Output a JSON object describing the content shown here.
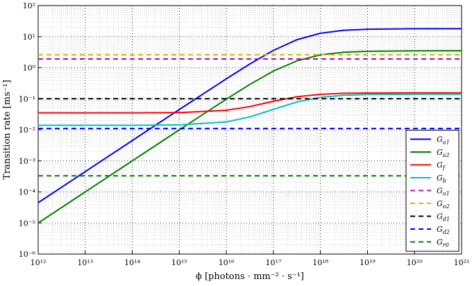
{
  "chart_data": {
    "type": "line",
    "xlabel": "ϕ [photons · mm⁻² · s⁻¹]",
    "ylabel": "Transition rate [ms⁻¹]",
    "xscale": "log",
    "yscale": "log",
    "grid": true,
    "legend": "lower right",
    "x": [
      1000000000000.0,
      10000000000000.0,
      100000000000000.0,
      1000000000000000.0,
      1e+16,
      3.16e+16,
      1e+17,
      3.16e+17,
      1e+18,
      3.16e+18,
      1e+19,
      1e+20,
      1e+21
    ],
    "xlim": [
      1000000000000.0,
      1e+21
    ],
    "xticks": [
      {
        "value": 1000000000000.0,
        "label": "10¹²"
      },
      {
        "value": 10000000000000.0,
        "label": "10¹³"
      },
      {
        "value": 100000000000000.0,
        "label": "10¹⁴"
      },
      {
        "value": 1000000000000000.0,
        "label": "10¹⁵"
      },
      {
        "value": 1e+16,
        "label": "10¹⁶"
      },
      {
        "value": 1e+17,
        "label": "10¹⁷"
      },
      {
        "value": 1e+18,
        "label": "10¹⁸"
      },
      {
        "value": 1e+19,
        "label": "10¹⁹"
      },
      {
        "value": 1e+20,
        "label": "10²⁰"
      },
      {
        "value": 1e+21,
        "label": "10²¹"
      }
    ],
    "ylim": [
      1e-06,
      100
    ],
    "yticks": [
      {
        "value": 1e-06,
        "label": "10⁻⁶"
      },
      {
        "value": 1e-05,
        "label": "10⁻⁵"
      },
      {
        "value": 0.0001,
        "label": "10⁻⁴"
      },
      {
        "value": 0.001,
        "label": "10⁻³"
      },
      {
        "value": 0.01,
        "label": "10⁻²"
      },
      {
        "value": 0.1,
        "label": "10⁻¹"
      },
      {
        "value": 1,
        "label": "10⁰"
      },
      {
        "value": 10,
        "label": "10¹"
      },
      {
        "value": 100,
        "label": "10²"
      }
    ],
    "series": [
      {
        "name": "Ga1",
        "color": "#0000ff",
        "dash": "solid",
        "values": [
          4.5e-05,
          0.00045,
          0.0045,
          0.045,
          0.439,
          1.318,
          3.6,
          7.94,
          12.86,
          15.98,
          17.31,
          17.93,
          17.99
        ]
      },
      {
        "name": "Ga2",
        "color": "#007f00",
        "dash": "solid",
        "values": [
          1e-05,
          0.0001,
          0.001,
          0.00997,
          0.0972,
          0.29,
          0.778,
          1.66,
          2.59,
          3.15,
          3.38,
          3.49,
          3.5
        ]
      },
      {
        "name": "Gf",
        "color": "#ff0000",
        "dash": "solid",
        "values": [
          0.035,
          0.035,
          0.035,
          0.0358,
          0.0425,
          0.0559,
          0.083,
          0.116,
          0.139,
          0.15,
          0.153,
          0.155,
          0.155
        ]
      },
      {
        "name": "Gb",
        "color": "#00bfbf",
        "dash": "solid",
        "values": [
          0.014,
          0.014,
          0.014,
          0.0144,
          0.018,
          0.026,
          0.0455,
          0.0786,
          0.111,
          0.129,
          0.136,
          0.14,
          0.14
        ]
      },
      {
        "name": "Go1",
        "color": "#bf00bf",
        "dash": "dashed",
        "values": [
          1.9,
          1.9,
          1.9,
          1.9,
          1.9,
          1.9,
          1.9,
          1.9,
          1.9,
          1.9,
          1.9,
          1.9,
          1.9
        ]
      },
      {
        "name": "Go2",
        "color": "#bfbf00",
        "dash": "dashed",
        "values": [
          2.6,
          2.6,
          2.6,
          2.6,
          2.6,
          2.6,
          2.6,
          2.6,
          2.6,
          2.6,
          2.6,
          2.6,
          2.6
        ]
      },
      {
        "name": "Gd1",
        "color": "#000000",
        "dash": "dashed",
        "values": [
          0.1,
          0.1,
          0.1,
          0.1,
          0.1,
          0.1,
          0.1,
          0.1,
          0.1,
          0.1,
          0.1,
          0.1,
          0.1
        ]
      },
      {
        "name": "Gd2",
        "color": "#0000ff",
        "dash": "dashed",
        "values": [
          0.011,
          0.011,
          0.011,
          0.011,
          0.011,
          0.011,
          0.011,
          0.011,
          0.011,
          0.011,
          0.011,
          0.011,
          0.011
        ]
      },
      {
        "name": "Gr0",
        "color": "#007f00",
        "dash": "dashed",
        "values": [
          0.00033,
          0.00033,
          0.00033,
          0.00033,
          0.00033,
          0.00033,
          0.00033,
          0.00033,
          0.00033,
          0.00033,
          0.00033,
          0.00033,
          0.00033
        ]
      }
    ]
  }
}
